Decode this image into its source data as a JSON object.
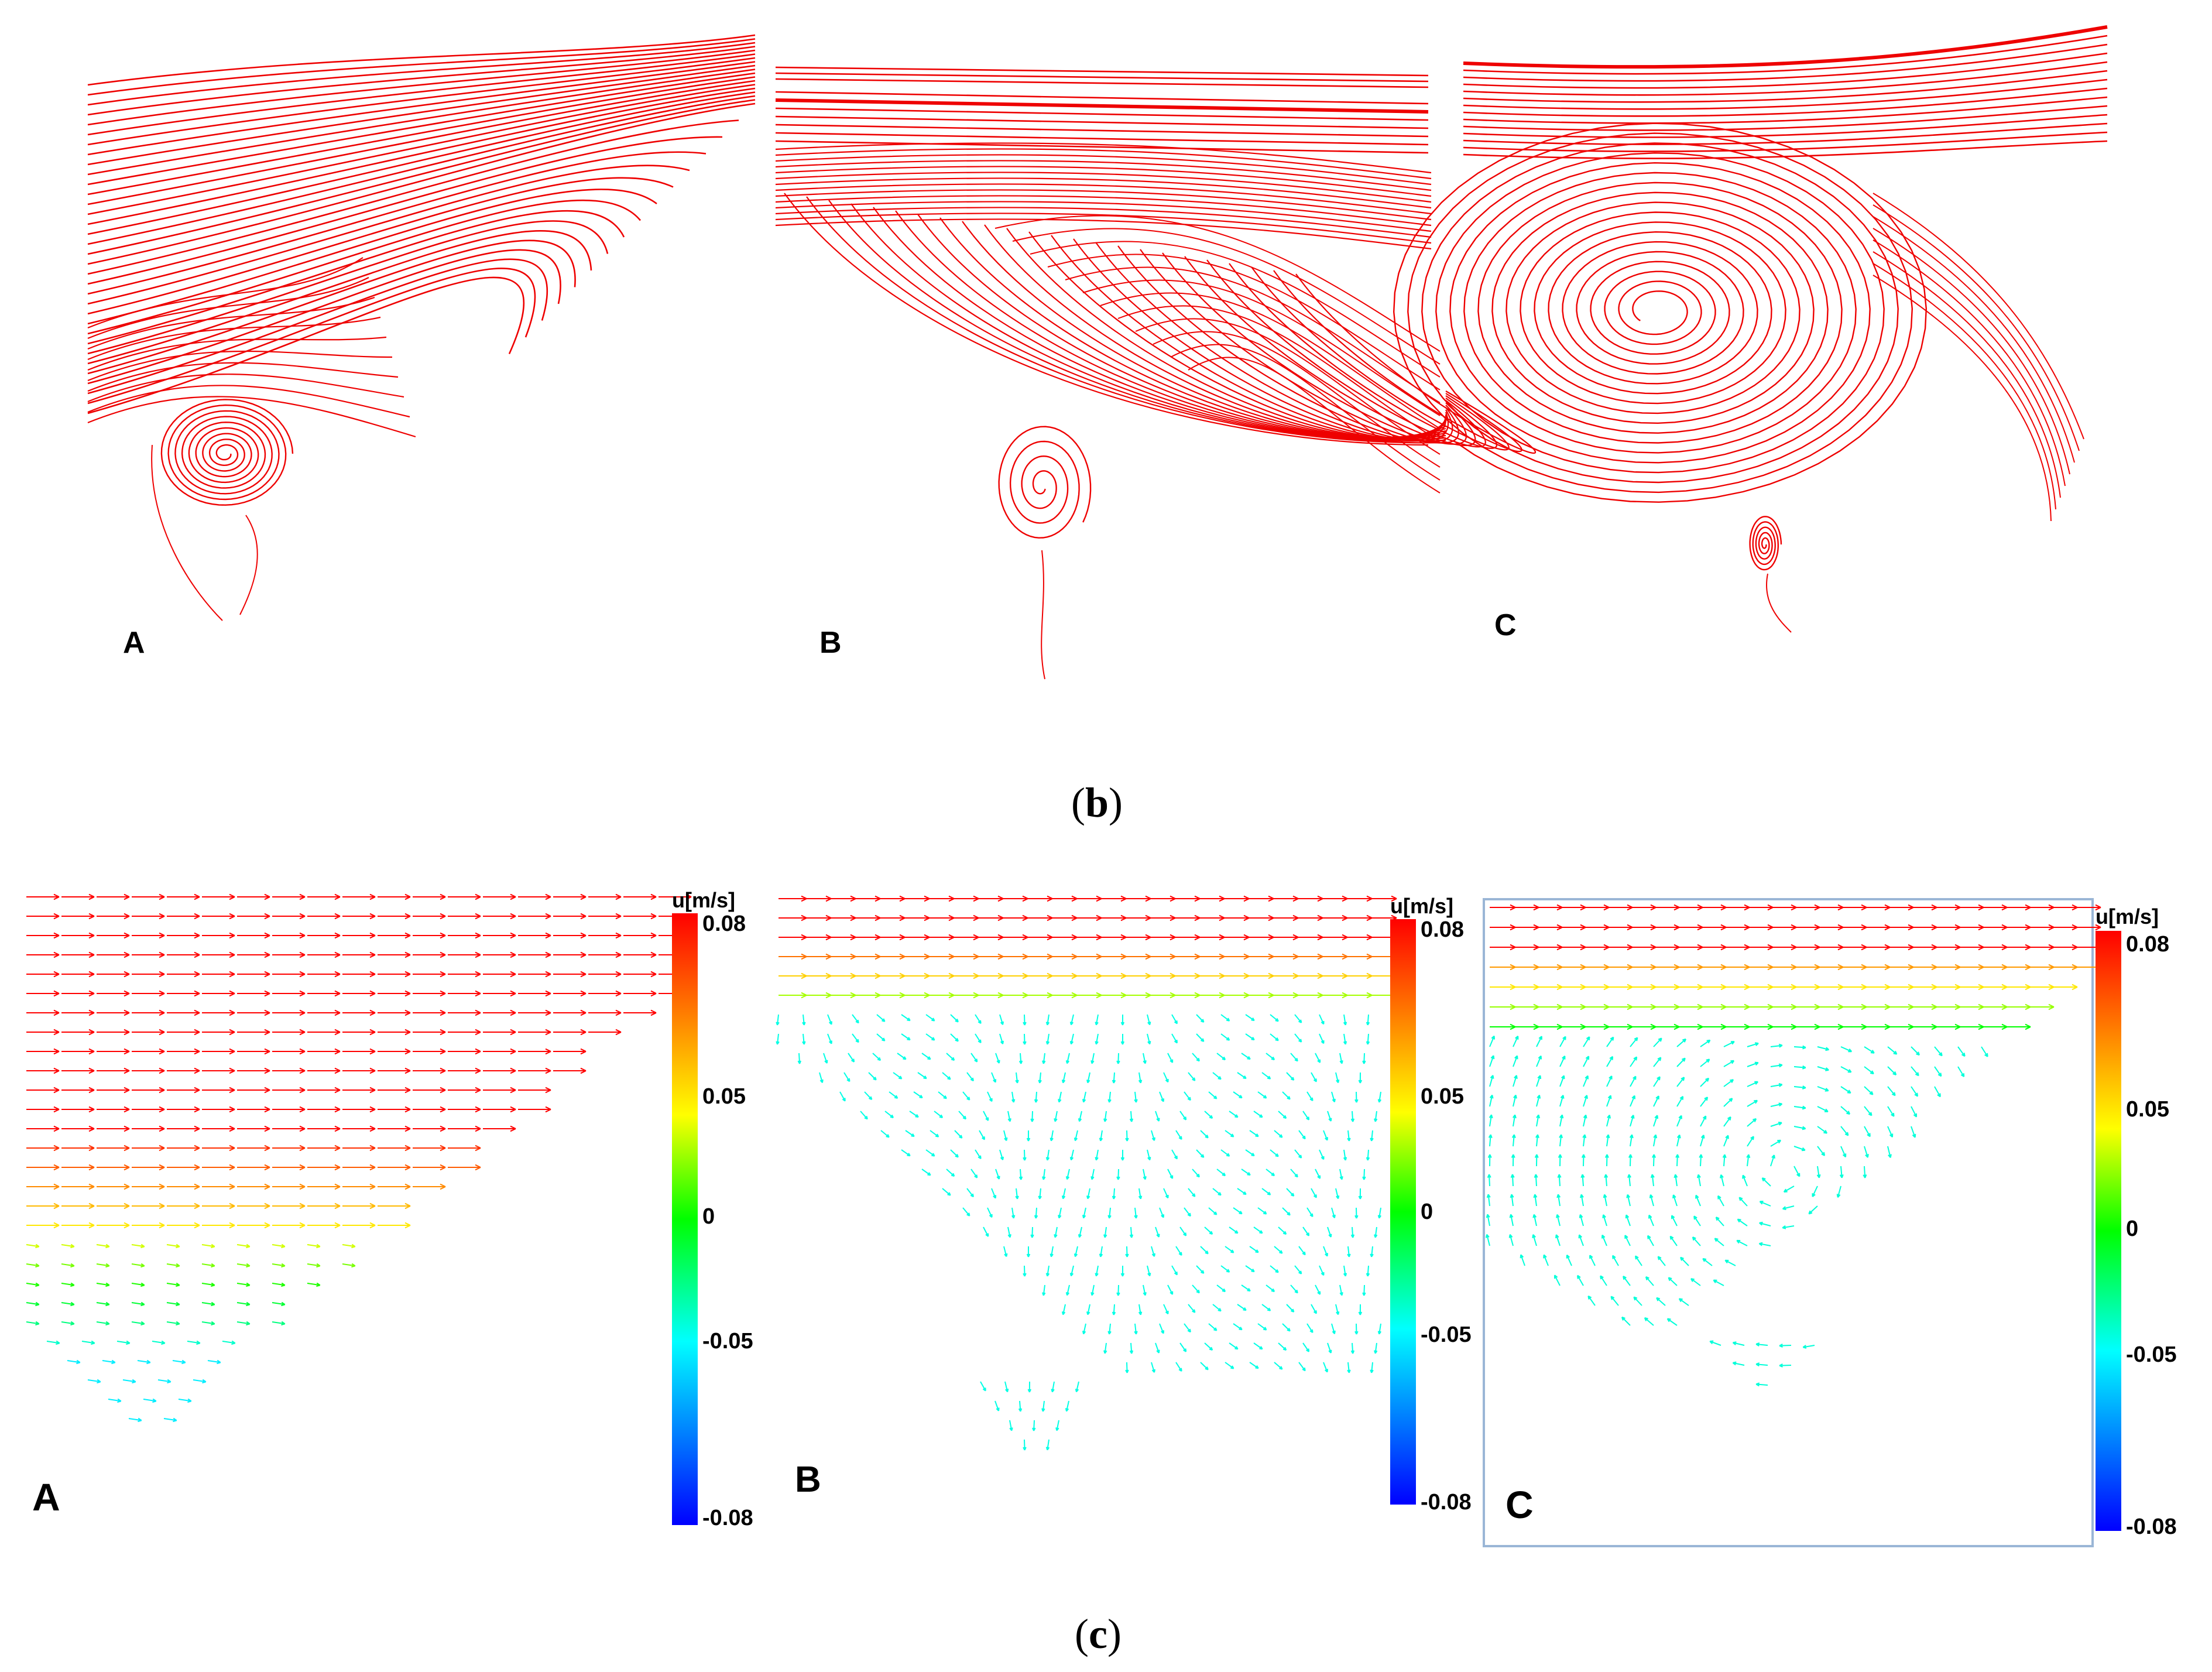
{
  "figure": {
    "streamline_panels": [
      {
        "letter": "A"
      },
      {
        "letter": "B"
      },
      {
        "letter": "C"
      }
    ],
    "vector_panels": [
      {
        "letter": "A"
      },
      {
        "letter": "B"
      },
      {
        "letter": "C"
      }
    ],
    "caption_b": {
      "open": "(",
      "letter": "b",
      "close": ")"
    },
    "caption_c": {
      "open": "(",
      "letter": "c",
      "close": ")"
    },
    "colorbar": {
      "title": "u[m/s]",
      "ticks": [
        "0.08",
        "0.05",
        "0",
        "-0.05",
        "-0.08"
      ],
      "colors": [
        "#ff0000",
        "#ff8000",
        "#ffff00",
        "#00ff00",
        "#00ffff",
        "#0000ff"
      ]
    },
    "colors": {
      "streamline": "#ee0000",
      "frame": "#9ab6d6"
    }
  }
}
